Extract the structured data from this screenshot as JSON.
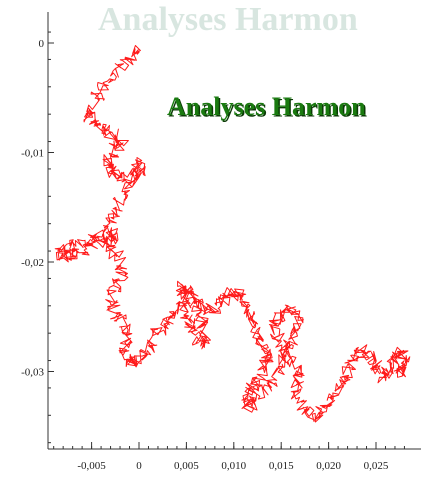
{
  "watermark": {
    "ghost_text": "Analyses Harmon",
    "main_text": "Analyses Harmon",
    "ghost_color": "#d8e6e0",
    "main_color": "#1a7a10"
  },
  "chart_data": {
    "type": "line",
    "title": "",
    "xlabel": "",
    "ylabel": "",
    "xlim": [
      -0.009,
      0.0285
    ],
    "ylim": [
      -0.0375,
      0.002
    ],
    "grid": false,
    "x_ticks": [
      -0.005,
      0,
      0.005,
      0.01,
      0.015,
      0.02,
      0.025
    ],
    "x_tick_labels": [
      "-0,005",
      "0",
      "0,005",
      "0,010",
      "0,015",
      "0,020",
      "0,025"
    ],
    "y_ticks": [
      0,
      -0.01,
      -0.02,
      -0.03
    ],
    "y_tick_labels": [
      "0",
      "-0,01",
      "-0,02",
      "-0,03"
    ],
    "series": [
      {
        "color": "#ff1a1a",
        "x": [
          0,
          -0.0012,
          -0.0026,
          -0.0038,
          -0.0047,
          -0.0053,
          -0.0041,
          -0.0032,
          -0.0018,
          -0.0025,
          -0.0035,
          -0.0031,
          -0.002,
          -0.0008,
          0.0004,
          0.0001,
          -0.0014,
          -0.0022,
          -0.0028,
          -0.0033,
          -0.0026,
          -0.0044,
          -0.0062,
          -0.0076,
          -0.0085,
          -0.007,
          -0.0055,
          -0.0042,
          -0.0031,
          -0.0022,
          -0.0017,
          -0.0024,
          -0.003,
          -0.0021,
          -0.0012,
          -0.0016,
          -0.0008,
          0.0003,
          0.0011,
          0.0019,
          0.0028,
          0.0038,
          0.0046,
          0.0052,
          0.0058,
          0.0066,
          0.0071,
          0.0064,
          0.005,
          0.0044,
          0.0051,
          0.0063,
          0.0074,
          0.0083,
          0.0094,
          0.0103,
          0.0111,
          0.0118,
          0.0124,
          0.0131,
          0.0136,
          0.0128,
          0.012,
          0.0112,
          0.0117,
          0.0128,
          0.014,
          0.015,
          0.0158,
          0.0164,
          0.0168,
          0.0159,
          0.0148,
          0.0142,
          0.015,
          0.0161,
          0.017,
          0.0165,
          0.0172,
          0.0184,
          0.0196,
          0.0206,
          0.0214,
          0.022,
          0.0226,
          0.0233,
          0.0241,
          0.025,
          0.0258,
          0.0264,
          0.027,
          0.0276,
          0.028,
          0.0275
        ],
        "y": [
          -0.0005,
          -0.0015,
          -0.0028,
          -0.004,
          -0.0055,
          -0.0068,
          -0.0078,
          -0.0082,
          -0.009,
          -0.0098,
          -0.0107,
          -0.0116,
          -0.0124,
          -0.0118,
          -0.011,
          -0.0123,
          -0.013,
          -0.0148,
          -0.016,
          -0.0172,
          -0.0178,
          -0.0182,
          -0.019,
          -0.0196,
          -0.0192,
          -0.0186,
          -0.018,
          -0.0176,
          -0.0184,
          -0.0196,
          -0.021,
          -0.0224,
          -0.0238,
          -0.0252,
          -0.0266,
          -0.0282,
          -0.0292,
          -0.0288,
          -0.0276,
          -0.0264,
          -0.0256,
          -0.0246,
          -0.0238,
          -0.0252,
          -0.0266,
          -0.0276,
          -0.0262,
          -0.0246,
          -0.0232,
          -0.0222,
          -0.0226,
          -0.0236,
          -0.0244,
          -0.024,
          -0.023,
          -0.0226,
          -0.0238,
          -0.025,
          -0.0264,
          -0.0276,
          -0.029,
          -0.0302,
          -0.0314,
          -0.0326,
          -0.0332,
          -0.0322,
          -0.0308,
          -0.0292,
          -0.0278,
          -0.0264,
          -0.0252,
          -0.0244,
          -0.025,
          -0.0262,
          -0.0276,
          -0.029,
          -0.0304,
          -0.0318,
          -0.0332,
          -0.0342,
          -0.0336,
          -0.0322,
          -0.031,
          -0.0298,
          -0.0286,
          -0.028,
          -0.0284,
          -0.0296,
          -0.0306,
          -0.03,
          -0.029,
          -0.0282,
          -0.0288,
          -0.03
        ]
      }
    ]
  }
}
